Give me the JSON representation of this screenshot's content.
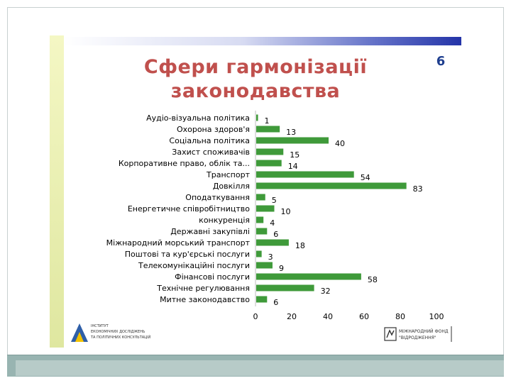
{
  "slide": {
    "title_line1": "Сфери гармонізації",
    "title_line2": "законодавства",
    "number": "6"
  },
  "colors": {
    "bar": "#3f9a3a",
    "title": "#c0504d",
    "number": "#1f3f8f"
  },
  "logos": {
    "left_icon": "institute-logo-icon",
    "left_text_line1": "ІНСТИТУТ",
    "left_text_line2": "ЕКОНОМІЧНИХ ДОСЛІДЖЕНЬ",
    "left_text_line3": "ТА ПОЛІТИЧНИХ КОНСУЛЬТАЦІЙ",
    "right_icon": "international-fund-logo-icon",
    "right_text_line1": "МІЖНАРОДНИЙ ФОНД",
    "right_text_line2": "\"ВІДРОДЖЕННЯ\""
  },
  "chart_data": {
    "type": "bar",
    "orientation": "horizontal",
    "categories": [
      "Аудіо-візуальна політика",
      "Охорона здоров'я",
      "Соціальна політика",
      "Захист споживачів",
      "Корпоративне право, облік та...",
      "Транспорт",
      "Довкілля",
      "Оподаткування",
      "Енергетичне співробітництво",
      "конкуренція",
      "Державні закупівлі",
      "Міжнародний морський транспорт",
      "Поштові та кур'єрські послуги",
      "Телекомунікаційні послуги",
      "Фінансові послуги",
      "Технічне регулювання",
      "Митне законодавство"
    ],
    "values": [
      1,
      13,
      40,
      15,
      14,
      54,
      83,
      5,
      10,
      4,
      6,
      18,
      3,
      9,
      58,
      32,
      6
    ],
    "xlim": [
      0,
      100
    ],
    "xticks": [
      "0",
      "20",
      "40",
      "60",
      "80",
      "100"
    ],
    "grid": false,
    "legend": "none",
    "data_labels": true
  }
}
